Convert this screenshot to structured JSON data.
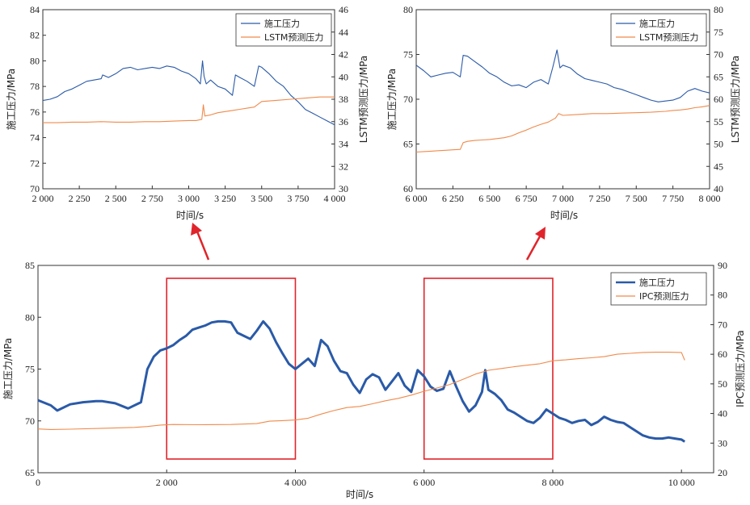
{
  "colors": {
    "blue": "#2a5aa8",
    "orange": "#f08a4b",
    "red": "#e0242b",
    "axis": "#333333"
  },
  "chart_data": [
    {
      "id": "top-left",
      "type": "line",
      "xlabel": "时间/s",
      "ylabel": "施工压力/MPa",
      "y2label": "LSTM预测压力/MPa",
      "xlim": [
        2000,
        4000
      ],
      "ylim": [
        70,
        84
      ],
      "y2lim": [
        30,
        46
      ],
      "xticks": [
        "2 000",
        "2 250",
        "2 500",
        "2 750",
        "3 000",
        "3 250",
        "3 500",
        "3 750",
        "4 000"
      ],
      "yticks": [
        "70",
        "72",
        "74",
        "76",
        "78",
        "80",
        "82",
        "84"
      ],
      "y2ticks": [
        "30",
        "32",
        "34",
        "36",
        "38",
        "40",
        "42",
        "44",
        "46"
      ],
      "legend_position": "top-right",
      "series": [
        {
          "name": "施工压力",
          "axis": "left",
          "color": "#2a5aa8",
          "x": [
            2000,
            2050,
            2100,
            2150,
            2200,
            2250,
            2300,
            2350,
            2400,
            2410,
            2450,
            2500,
            2550,
            2600,
            2650,
            2700,
            2750,
            2800,
            2850,
            2900,
            2950,
            3000,
            3050,
            3080,
            3095,
            3105,
            3120,
            3150,
            3200,
            3250,
            3300,
            3320,
            3350,
            3400,
            3450,
            3480,
            3500,
            3550,
            3600,
            3650,
            3700,
            3750,
            3800,
            3850,
            3900,
            3950,
            4000
          ],
          "y": [
            76.9,
            77.0,
            77.2,
            77.6,
            77.8,
            78.1,
            78.4,
            78.5,
            78.6,
            78.9,
            78.7,
            79.0,
            79.4,
            79.5,
            79.3,
            79.4,
            79.5,
            79.4,
            79.6,
            79.5,
            79.2,
            79.0,
            78.6,
            78.2,
            80.0,
            78.8,
            78.2,
            78.5,
            78.0,
            77.8,
            77.3,
            78.9,
            78.7,
            78.4,
            78.0,
            79.6,
            79.5,
            79.0,
            78.4,
            78.0,
            77.3,
            76.8,
            76.2,
            75.9,
            75.6,
            75.3,
            75.0
          ]
        },
        {
          "name": "LSTM预测压力",
          "axis": "right",
          "color": "#f08a4b",
          "x": [
            2000,
            2100,
            2200,
            2300,
            2400,
            2500,
            2600,
            2700,
            2800,
            2900,
            3000,
            3050,
            3090,
            3100,
            3110,
            3150,
            3200,
            3250,
            3300,
            3350,
            3400,
            3450,
            3500,
            3600,
            3700,
            3800,
            3900,
            4000
          ],
          "y": [
            35.9,
            35.9,
            35.95,
            35.95,
            36.0,
            35.95,
            35.95,
            36.0,
            36.0,
            36.05,
            36.1,
            36.1,
            36.2,
            37.5,
            36.5,
            36.6,
            36.8,
            36.9,
            37.0,
            37.1,
            37.2,
            37.3,
            37.8,
            37.9,
            38.0,
            38.1,
            38.2,
            38.2
          ]
        }
      ]
    },
    {
      "id": "top-right",
      "type": "line",
      "xlabel": "时间/s",
      "ylabel": "施工压力/MPa",
      "y2label": "LSTM预测压力/MPa",
      "xlim": [
        6000,
        8000
      ],
      "ylim": [
        60,
        80
      ],
      "y2lim": [
        40,
        80
      ],
      "xticks": [
        "6 000",
        "6 250",
        "6 500",
        "6 750",
        "7 000",
        "7 250",
        "7 500",
        "7 750",
        "8 000"
      ],
      "yticks": [
        "60",
        "65",
        "70",
        "75",
        "80"
      ],
      "y2ticks": [
        "40",
        "45",
        "50",
        "55",
        "60",
        "65",
        "70",
        "75",
        "80"
      ],
      "legend_position": "top-right",
      "series": [
        {
          "name": "施工压力",
          "axis": "left",
          "color": "#2a5aa8",
          "x": [
            6000,
            6050,
            6100,
            6150,
            6200,
            6250,
            6300,
            6320,
            6350,
            6400,
            6450,
            6500,
            6550,
            6600,
            6650,
            6700,
            6750,
            6800,
            6850,
            6900,
            6930,
            6960,
            6980,
            7000,
            7050,
            7100,
            7150,
            7200,
            7250,
            7300,
            7350,
            7400,
            7450,
            7500,
            7550,
            7600,
            7650,
            7700,
            7750,
            7800,
            7850,
            7900,
            7950,
            8000
          ],
          "y": [
            73.8,
            73.2,
            72.5,
            72.7,
            72.9,
            73.0,
            72.5,
            74.9,
            74.8,
            74.2,
            73.6,
            72.9,
            72.5,
            71.9,
            71.5,
            71.6,
            71.3,
            71.9,
            72.2,
            71.7,
            73.5,
            75.5,
            73.5,
            73.8,
            73.5,
            72.8,
            72.3,
            72.1,
            71.9,
            71.7,
            71.3,
            71.1,
            70.8,
            70.5,
            70.2,
            69.9,
            69.7,
            69.8,
            69.9,
            70.2,
            70.9,
            71.2,
            70.9,
            70.7
          ]
        },
        {
          "name": "LSTM预测压力",
          "axis": "right",
          "color": "#f08a4b",
          "x": [
            6000,
            6050,
            6100,
            6150,
            6200,
            6250,
            6300,
            6320,
            6350,
            6400,
            6450,
            6500,
            6550,
            6600,
            6650,
            6700,
            6750,
            6800,
            6850,
            6900,
            6950,
            6970,
            7000,
            7100,
            7200,
            7300,
            7400,
            7500,
            7600,
            7700,
            7750,
            7800,
            7850,
            7900,
            7950,
            8000
          ],
          "y": [
            48.2,
            48.3,
            48.4,
            48.5,
            48.6,
            48.7,
            48.8,
            50.3,
            50.6,
            50.8,
            50.9,
            51.0,
            51.2,
            51.4,
            51.8,
            52.5,
            53.1,
            53.8,
            54.4,
            54.9,
            55.8,
            56.8,
            56.4,
            56.6,
            56.8,
            56.8,
            56.9,
            57.0,
            57.1,
            57.3,
            57.5,
            57.6,
            57.8,
            58.1,
            58.3,
            58.6
          ]
        }
      ]
    },
    {
      "id": "bottom",
      "type": "line",
      "xlabel": "时间/s",
      "ylabel": "施工压力/MPa",
      "y2label": "IPC预测压力/MPa",
      "xlim": [
        0,
        10500
      ],
      "ylim": [
        65,
        85
      ],
      "y2lim": [
        20,
        90
      ],
      "xticks_values": [
        0,
        2000,
        4000,
        6000,
        8000,
        10000
      ],
      "xticks": [
        "0",
        "2 000",
        "4 000",
        "6 000",
        "8 000",
        "10 000"
      ],
      "yticks": [
        "65",
        "70",
        "75",
        "80",
        "85"
      ],
      "y2ticks": [
        "20",
        "30",
        "40",
        "50",
        "60",
        "70",
        "80",
        "90"
      ],
      "legend_position": "top-right",
      "zoom_boxes": [
        {
          "x0": 2000,
          "x1": 4000
        },
        {
          "x0": 6000,
          "x1": 8000
        }
      ],
      "series": [
        {
          "name": "施工压力",
          "axis": "left",
          "color": "#2a5aa8",
          "x": [
            0,
            200,
            300,
            500,
            700,
            900,
            1000,
            1200,
            1400,
            1600,
            1700,
            1800,
            1900,
            2000,
            2100,
            2200,
            2300,
            2400,
            2500,
            2600,
            2700,
            2800,
            2900,
            3000,
            3050,
            3100,
            3200,
            3300,
            3400,
            3500,
            3600,
            3700,
            3800,
            3900,
            4000,
            4100,
            4200,
            4300,
            4400,
            4500,
            4600,
            4700,
            4800,
            4900,
            5000,
            5100,
            5200,
            5300,
            5400,
            5500,
            5600,
            5700,
            5800,
            5900,
            6000,
            6100,
            6200,
            6300,
            6400,
            6500,
            6600,
            6700,
            6800,
            6900,
            6950,
            7000,
            7100,
            7200,
            7300,
            7400,
            7500,
            7600,
            7700,
            7800,
            7900,
            8000,
            8100,
            8200,
            8300,
            8400,
            8500,
            8600,
            8700,
            8800,
            8900,
            9000,
            9100,
            9200,
            9300,
            9400,
            9500,
            9600,
            9700,
            9800,
            9900,
            10000,
            10050
          ],
          "y": [
            72.0,
            71.5,
            71.0,
            71.6,
            71.8,
            71.9,
            71.9,
            71.7,
            71.2,
            71.8,
            75.0,
            76.2,
            76.8,
            77.0,
            77.3,
            77.8,
            78.2,
            78.8,
            79.0,
            79.2,
            79.5,
            79.6,
            79.6,
            79.5,
            79.0,
            78.5,
            78.2,
            77.9,
            78.7,
            79.6,
            78.9,
            77.6,
            76.5,
            75.5,
            75.0,
            75.5,
            76.0,
            75.3,
            77.8,
            77.2,
            75.8,
            74.8,
            74.6,
            73.5,
            72.7,
            74.0,
            74.5,
            74.2,
            73.0,
            73.8,
            74.6,
            73.4,
            72.8,
            74.9,
            74.3,
            73.3,
            72.9,
            73.1,
            74.8,
            73.3,
            71.9,
            70.9,
            71.5,
            72.8,
            74.9,
            73.0,
            72.6,
            72.0,
            71.1,
            70.8,
            70.4,
            70.0,
            69.8,
            70.3,
            71.1,
            70.7,
            70.3,
            70.1,
            69.8,
            70.0,
            70.1,
            69.6,
            69.9,
            70.4,
            70.1,
            69.9,
            69.8,
            69.4,
            69.0,
            68.6,
            68.4,
            68.3,
            68.3,
            68.4,
            68.3,
            68.2,
            68.0
          ]
        },
        {
          "name": "IPC预测压力",
          "axis": "right",
          "color": "#f08a4b",
          "x": [
            0,
            200,
            500,
            1000,
            1500,
            1700,
            1900,
            2100,
            2500,
            3000,
            3400,
            3600,
            3800,
            4000,
            4200,
            4400,
            4600,
            4800,
            5000,
            5200,
            5400,
            5600,
            5800,
            6000,
            6200,
            6400,
            6600,
            6800,
            7000,
            7200,
            7400,
            7600,
            7800,
            8000,
            8200,
            8400,
            8600,
            8800,
            9000,
            9200,
            9400,
            9600,
            9800,
            10000,
            10050
          ],
          "y": [
            34.8,
            34.6,
            34.7,
            35.0,
            35.3,
            35.6,
            36.1,
            36.3,
            36.2,
            36.3,
            36.6,
            37.4,
            37.6,
            37.8,
            38.4,
            39.8,
            41.0,
            42.0,
            42.4,
            43.3,
            44.3,
            45.1,
            46.2,
            47.5,
            48.6,
            49.8,
            51.5,
            53.3,
            54.6,
            55.2,
            55.8,
            56.3,
            56.8,
            57.8,
            58.1,
            58.5,
            58.8,
            59.2,
            60.0,
            60.3,
            60.6,
            60.7,
            60.7,
            60.6,
            58.0
          ]
        }
      ]
    }
  ]
}
